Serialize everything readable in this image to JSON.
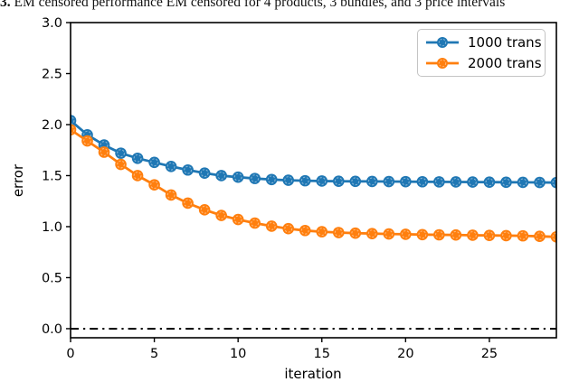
{
  "caption": {
    "prefix": "3.",
    "text": " EM censored performance EM censored for 4 products, 3 bundles, and 3 price intervals"
  },
  "chart_data": {
    "type": "line",
    "title": "",
    "xlabel": "iteration",
    "ylabel": "error",
    "xlim": [
      0,
      29
    ],
    "ylim": [
      -0.089,
      3.0
    ],
    "grid": false,
    "legend_position": "upper right",
    "x_ticks": [
      0,
      5,
      10,
      15,
      20,
      25
    ],
    "x_tick_labels": [
      "0",
      "5",
      "10",
      "15",
      "20",
      "25"
    ],
    "y_ticks": [
      0.0,
      0.5,
      1.0,
      1.5,
      2.0,
      2.5,
      3.0
    ],
    "y_tick_labels": [
      "0.0",
      "0.5",
      "1.0",
      "1.5",
      "2.0",
      "2.5",
      "3.0"
    ],
    "x": [
      0,
      1,
      2,
      3,
      4,
      5,
      6,
      7,
      8,
      9,
      10,
      11,
      12,
      13,
      14,
      15,
      16,
      17,
      18,
      19,
      20,
      21,
      22,
      23,
      24,
      25,
      26,
      27,
      28,
      29
    ],
    "series": [
      {
        "name": "1000 trans",
        "color": "#1f77b4",
        "marker": "circle",
        "values": [
          2.04,
          1.9,
          1.8,
          1.72,
          1.67,
          1.63,
          1.59,
          1.555,
          1.525,
          1.5,
          1.485,
          1.472,
          1.462,
          1.455,
          1.45,
          1.447,
          1.445,
          1.444,
          1.443,
          1.442,
          1.441,
          1.44,
          1.439,
          1.438,
          1.437,
          1.436,
          1.435,
          1.434,
          1.433,
          1.432
        ]
      },
      {
        "name": "2000 trans",
        "color": "#ff7f0e",
        "marker": "circle",
        "values": [
          1.95,
          1.84,
          1.73,
          1.61,
          1.5,
          1.41,
          1.31,
          1.23,
          1.165,
          1.11,
          1.07,
          1.035,
          1.005,
          0.98,
          0.962,
          0.95,
          0.942,
          0.936,
          0.932,
          0.928,
          0.925,
          0.922,
          0.92,
          0.918,
          0.916,
          0.914,
          0.912,
          0.91,
          0.905,
          0.9
        ]
      }
    ],
    "reference_line": {
      "y": 0.0,
      "style": "dashdot",
      "color": "#000000"
    }
  }
}
